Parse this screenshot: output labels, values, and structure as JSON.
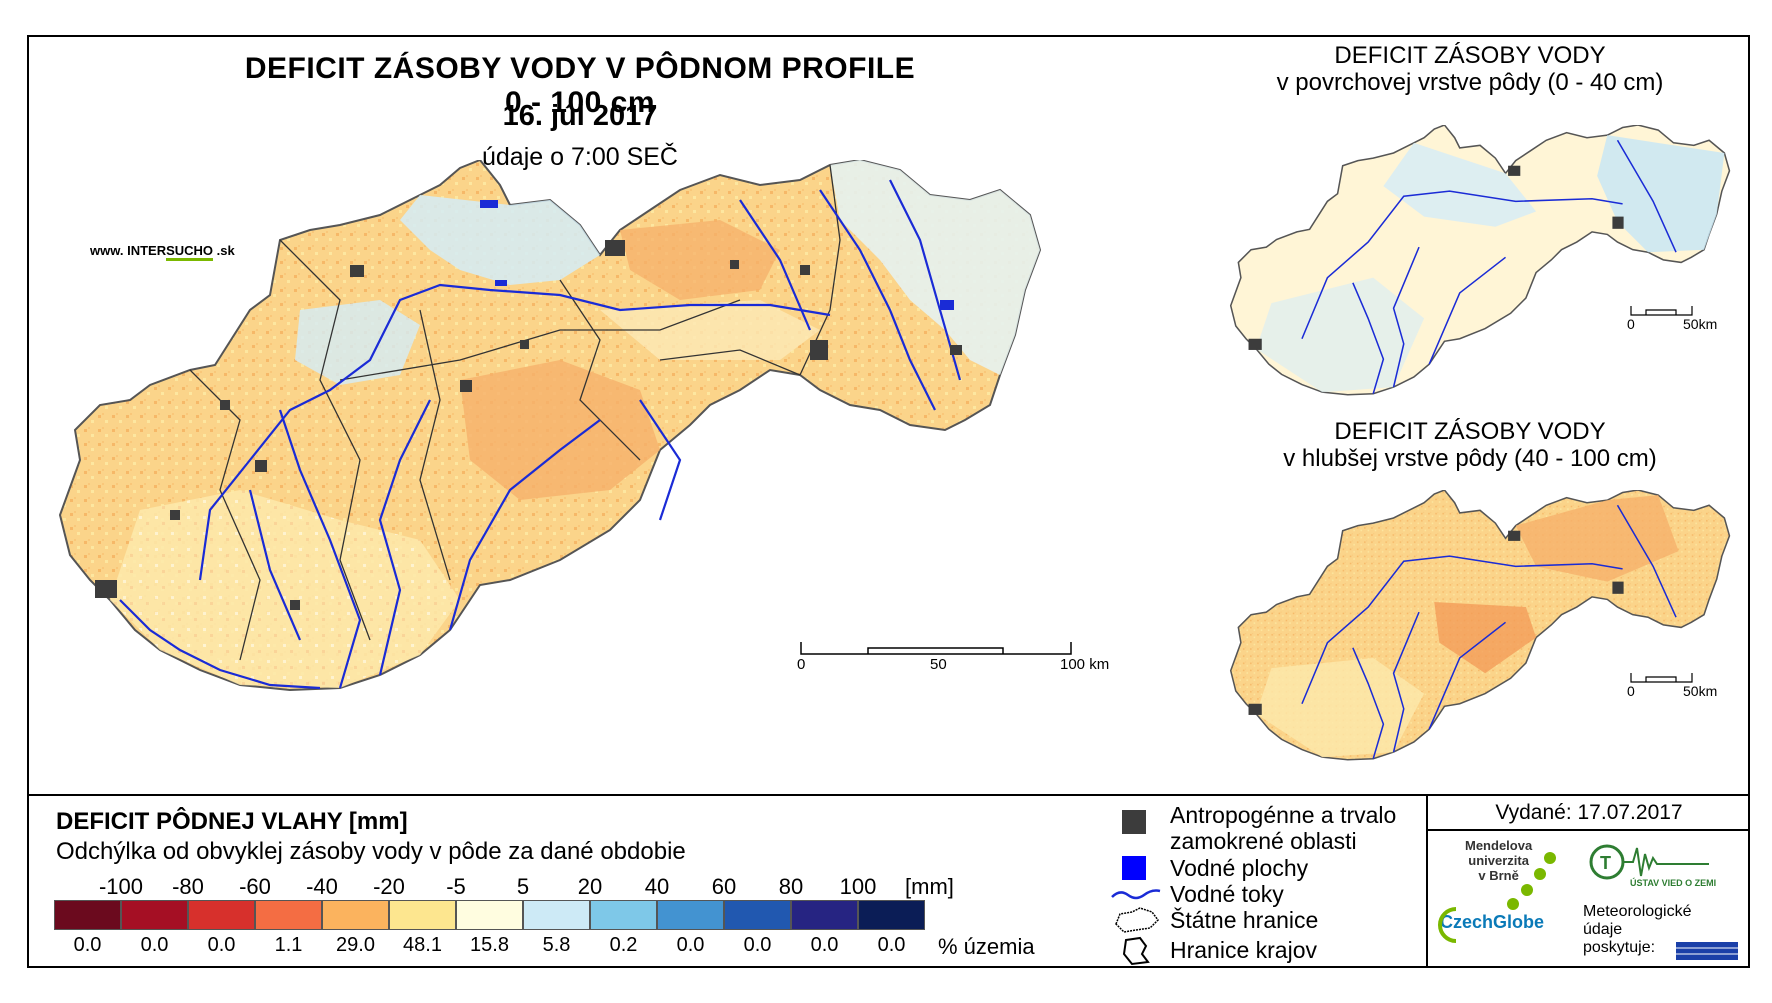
{
  "main_map": {
    "title": "DEFICIT ZÁSOBY VODY V PÔDNOM PROFILE 0 - 100 cm",
    "date": "16. júl 2017",
    "subtitle": "údaje o 7:00 SEČ",
    "website_prefix": "www. INTER",
    "website_highlight": "SUCHO",
    "website_suffix": " .sk",
    "scale": {
      "labels": [
        "0",
        "50",
        "100 km"
      ]
    }
  },
  "inset_top": {
    "title_line1": "DEFICIT ZÁSOBY VODY",
    "title_line2": "v povrchovej vrstve pôdy (0 - 40 cm)",
    "scale": {
      "labels": [
        "0",
        "50km"
      ]
    }
  },
  "inset_bottom": {
    "title_line1": "DEFICIT ZÁSOBY VODY",
    "title_line2": "v hlubšej vrstve pôdy (40 - 100 cm)",
    "scale": {
      "labels": [
        "0",
        "50km"
      ]
    }
  },
  "legend": {
    "title": "DEFICIT PÔDNEJ VLAHY [mm]",
    "subtitle": "Odchýlka od obvyklej zásoby vody v pôde za dané obdobie",
    "unit": "[mm]",
    "percent_label": "% územia",
    "boundaries": [
      "-100",
      "-80",
      "-60",
      "-40",
      "-20",
      "-5",
      "5",
      "20",
      "40",
      "60",
      "80",
      "100"
    ],
    "classes": [
      {
        "color": "#6b0a1e",
        "percent": "0.0"
      },
      {
        "color": "#a50f24",
        "percent": "0.0"
      },
      {
        "color": "#d7302c",
        "percent": "0.0"
      },
      {
        "color": "#f46d43",
        "percent": "1.1"
      },
      {
        "color": "#fbb35e",
        "percent": "29.0"
      },
      {
        "color": "#fde68f",
        "percent": "48.1"
      },
      {
        "color": "#fffde0",
        "percent": "15.8"
      },
      {
        "color": "#cdeaf6",
        "percent": "5.8"
      },
      {
        "color": "#7ec8e8",
        "percent": "0.2"
      },
      {
        "color": "#4393d1",
        "percent": "0.0"
      },
      {
        "color": "#2158b0",
        "percent": "0.0"
      },
      {
        "color": "#262482",
        "percent": "0.0"
      },
      {
        "color": "#0b1d56",
        "percent": "0.0"
      }
    ]
  },
  "map_legend": {
    "items": [
      {
        "label_line1": "Antropogénne a trvalo",
        "label_line2": "zamokrené oblasti",
        "icon": "dark-square"
      },
      {
        "label_line1": "Vodné plochy",
        "icon": "blue-square"
      },
      {
        "label_line1": "Vodné toky",
        "icon": "river-line"
      },
      {
        "label_line1": "Štátne hranice",
        "icon": "border-outline"
      },
      {
        "label_line1": "Hranice krajov",
        "icon": "region-outline"
      }
    ]
  },
  "info": {
    "issued": "Vydané: 17.07.2017",
    "mendel_line1": "Mendelova",
    "mendel_line2": "univerzita",
    "mendel_line3": "v Brně",
    "czechglobe": "CzechGlobe",
    "uvgz": "ÚSTAV VIED O ZEMI",
    "meteo_line1": "Meteorologické",
    "meteo_line2": "údaje",
    "meteo_line3": "poskytuje:"
  },
  "colors": {
    "map_orange": "#f8c070",
    "map_yellow": "#fde7a0",
    "map_light": "#fff8dc",
    "map_blue": "#d4ecf7",
    "river": "#1a2bd6",
    "urban": "#3c3c3c"
  }
}
